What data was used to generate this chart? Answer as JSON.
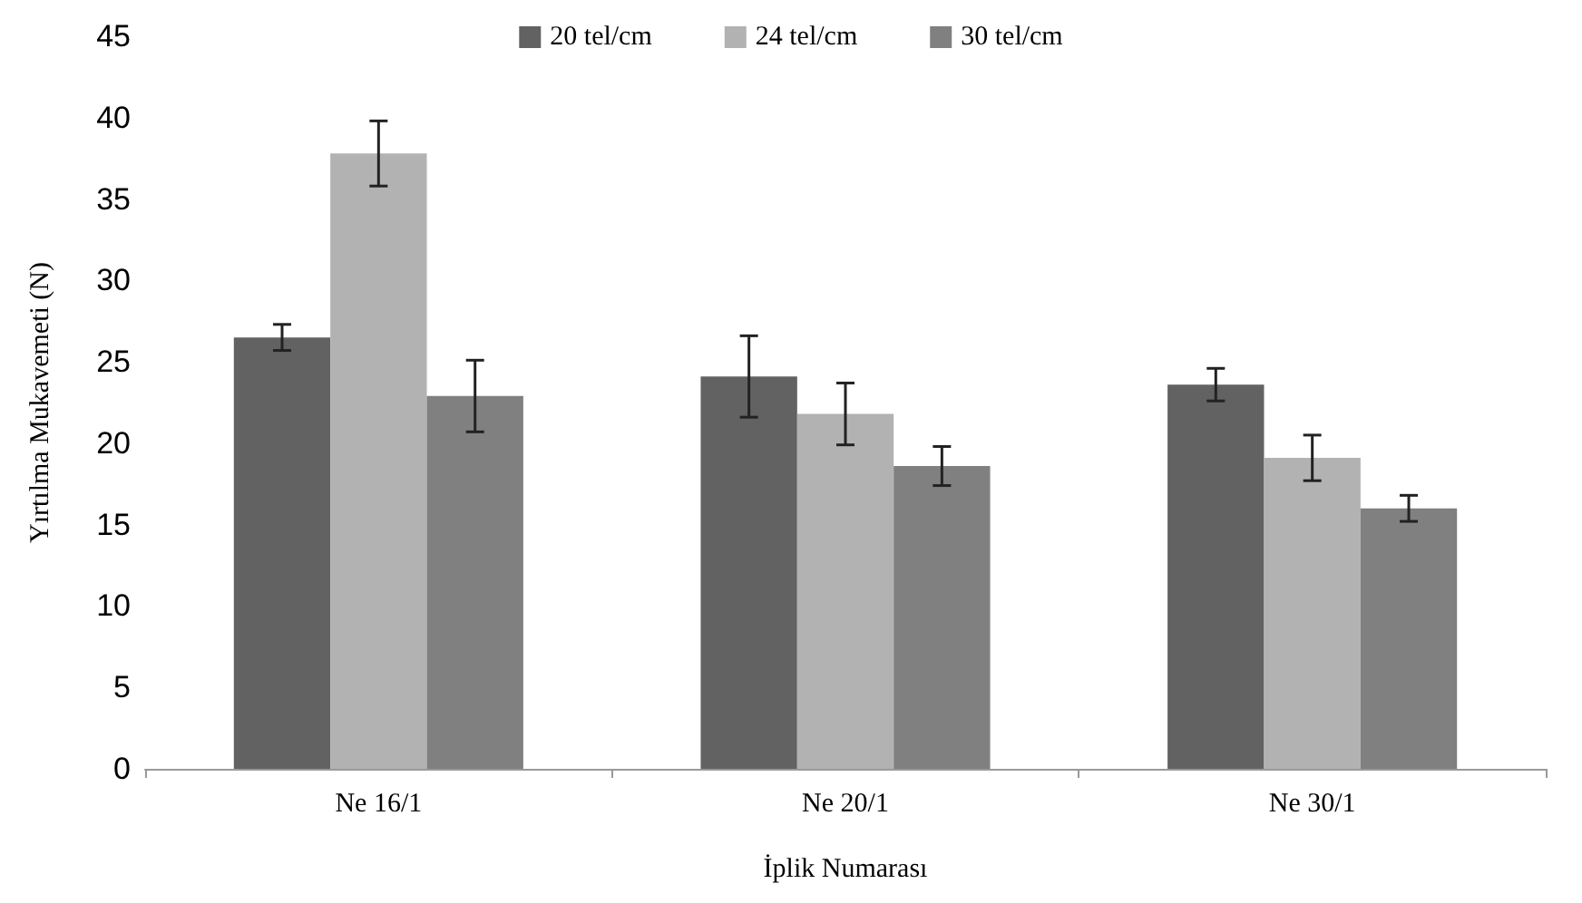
{
  "chart_data": {
    "type": "bar",
    "xlabel": "İplik Numarası",
    "ylabel": "Yırtılma Mukavemeti (N)",
    "categories": [
      "Ne 16/1",
      "Ne 20/1",
      "Ne 30/1"
    ],
    "series": [
      {
        "name": "20 tel/cm",
        "color": "#626262",
        "values": [
          26.5,
          24.1,
          23.6
        ],
        "errors": [
          0.8,
          2.5,
          1
        ]
      },
      {
        "name": "24 tel/cm",
        "color": "#b2b2b2",
        "values": [
          37.8,
          21.8,
          19.1
        ],
        "errors": [
          2,
          1.9,
          1.4
        ]
      },
      {
        "name": "30 tel/cm",
        "color": "#808080",
        "values": [
          22.9,
          18.6,
          16
        ],
        "errors": [
          2.2,
          1.2,
          0.8
        ]
      }
    ],
    "ylim": [
      0,
      45
    ],
    "yticks": [
      0,
      5,
      10,
      15,
      20,
      25,
      30,
      35,
      40,
      45
    ],
    "grid": false,
    "legend": "top"
  }
}
